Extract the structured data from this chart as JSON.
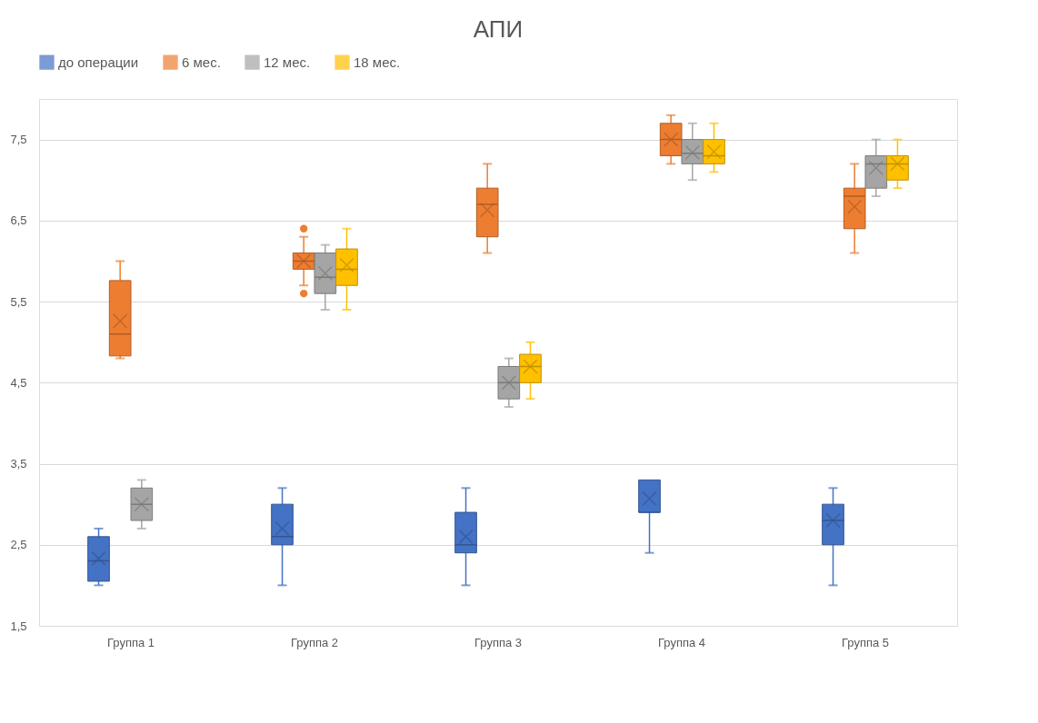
{
  "chart_data": {
    "type": "box",
    "title": "АПИ",
    "categories": [
      "Группа 1",
      "Группа 2",
      "Группа 3",
      "Группа 4",
      "Группа 5"
    ],
    "ylim": [
      1.5,
      8.0
    ],
    "yticks": [
      {
        "value": 1.5,
        "label": "1,5"
      },
      {
        "value": 2.5,
        "label": "2,5"
      },
      {
        "value": 3.5,
        "label": "3,5"
      },
      {
        "value": 4.5,
        "label": "4,5"
      },
      {
        "value": 5.5,
        "label": "5,5"
      },
      {
        "value": 6.5,
        "label": "6,5"
      },
      {
        "value": 7.5,
        "label": "7,5"
      }
    ],
    "grid": "y",
    "legend": "top",
    "series": [
      {
        "name": "до операции",
        "color": "#4472c4",
        "boxes": [
          {
            "low": 2.0,
            "q1": 2.05,
            "median": 2.3,
            "q3": 2.6,
            "high": 2.7,
            "mean": 2.33
          },
          {
            "low": 2.0,
            "q1": 2.5,
            "median": 2.6,
            "q3": 3.0,
            "high": 3.2,
            "mean": 2.7
          },
          {
            "low": 2.0,
            "q1": 2.4,
            "median": 2.5,
            "q3": 2.9,
            "high": 3.2,
            "mean": 2.6
          },
          {
            "low": 2.4,
            "q1": 2.9,
            "median": 2.9,
            "q3": 3.3,
            "high": 3.3,
            "mean": 3.07
          },
          {
            "low": 2.0,
            "q1": 2.5,
            "median": 2.8,
            "q3": 3.0,
            "high": 3.2,
            "mean": 2.8
          }
        ]
      },
      {
        "name": "6 мес.",
        "color": "#ed7d31",
        "boxes": [
          {
            "low": 4.8,
            "q1": 4.83,
            "median": 5.1,
            "q3": 5.76,
            "high": 6.0,
            "mean": 5.26
          },
          {
            "low": 5.7,
            "q1": 5.9,
            "median": 6.0,
            "q3": 6.1,
            "high": 6.3,
            "mean": 6.0,
            "outliers": [
              6.4,
              5.6
            ]
          },
          {
            "low": 6.1,
            "q1": 6.3,
            "median": 6.7,
            "q3": 6.9,
            "high": 7.2,
            "mean": 6.63
          },
          {
            "low": 7.2,
            "q1": 7.3,
            "median": 7.5,
            "q3": 7.7,
            "high": 7.8,
            "mean": 7.5
          },
          {
            "low": 6.1,
            "q1": 6.4,
            "median": 6.8,
            "q3": 6.9,
            "high": 7.2,
            "mean": 6.67
          }
        ]
      },
      {
        "name": "12 мес.",
        "color": "#a5a5a5",
        "boxes": [
          {
            "low": 2.7,
            "q1": 2.8,
            "median": 3.0,
            "q3": 3.2,
            "high": 3.3,
            "mean": 3.0
          },
          {
            "low": 5.4,
            "q1": 5.6,
            "median": 5.8,
            "q3": 6.1,
            "high": 6.2,
            "mean": 5.85
          },
          {
            "low": 4.2,
            "q1": 4.3,
            "median": 4.5,
            "q3": 4.7,
            "high": 4.8,
            "mean": 4.5
          },
          {
            "low": 7.0,
            "q1": 7.2,
            "median": 7.33,
            "q3": 7.5,
            "high": 7.7,
            "mean": 7.34
          },
          {
            "low": 6.8,
            "q1": 6.9,
            "median": 7.2,
            "q3": 7.3,
            "high": 7.5,
            "mean": 7.15
          }
        ]
      },
      {
        "name": "18 мес.",
        "color": "#ffc000",
        "boxes": [
          null,
          {
            "low": 5.4,
            "q1": 5.7,
            "median": 5.9,
            "q3": 6.15,
            "high": 6.4,
            "mean": 5.95
          },
          {
            "low": 4.3,
            "q1": 4.5,
            "median": 4.7,
            "q3": 4.85,
            "high": 5.0,
            "mean": 4.7
          },
          {
            "low": 7.1,
            "q1": 7.2,
            "median": 7.3,
            "q3": 7.5,
            "high": 7.7,
            "mean": 7.35
          },
          {
            "low": 6.9,
            "q1": 7.0,
            "median": 7.2,
            "q3": 7.3,
            "high": 7.5,
            "mean": 7.2
          }
        ]
      }
    ]
  }
}
